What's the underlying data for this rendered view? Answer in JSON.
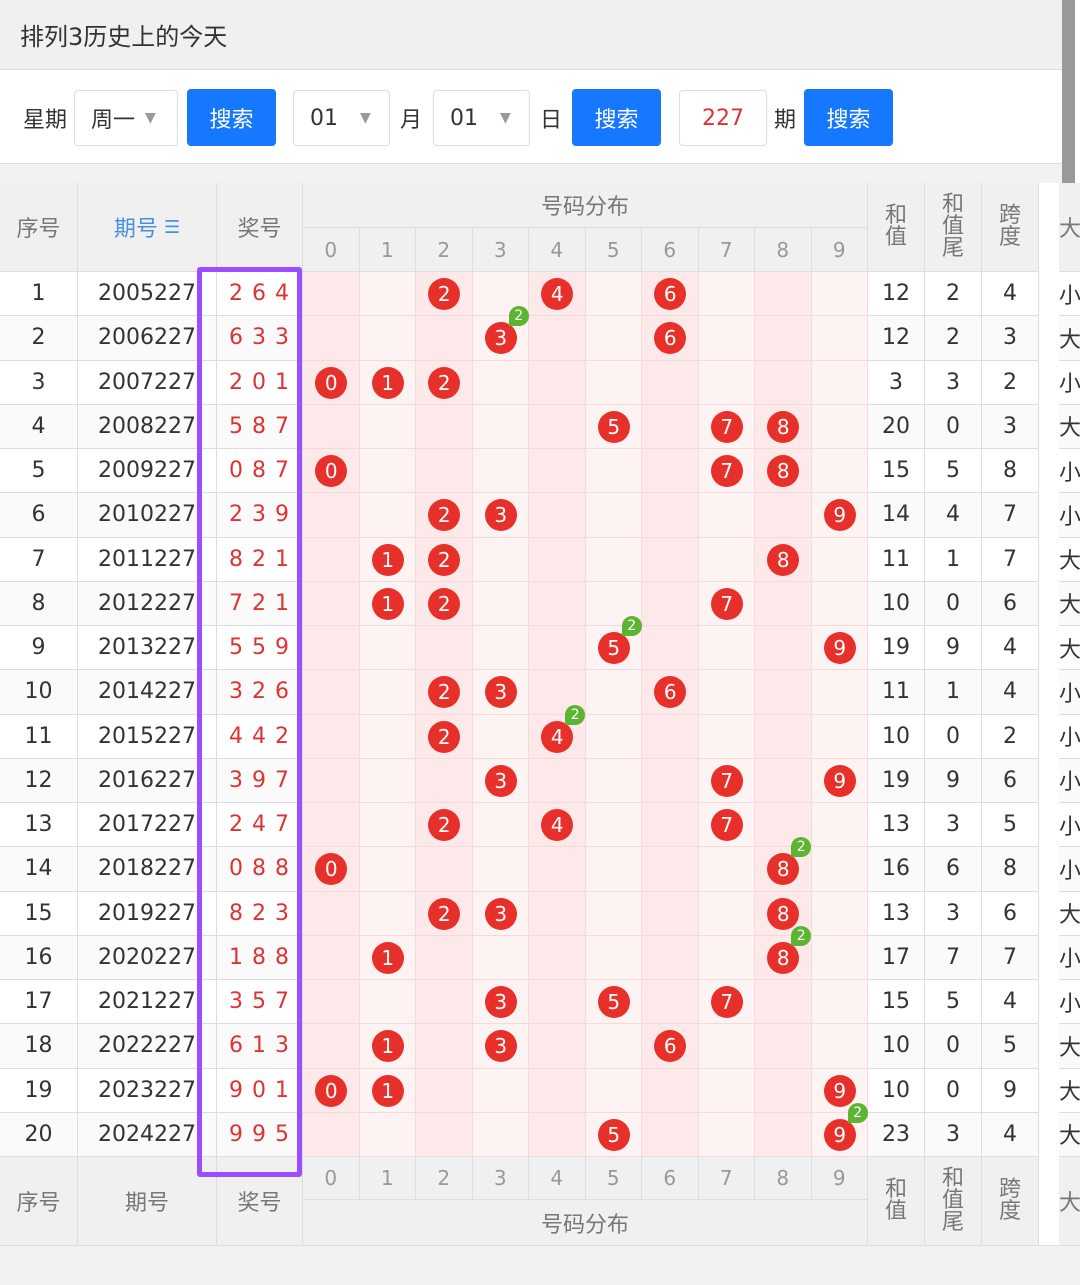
{
  "header": {
    "title": "排列3历史上的今天"
  },
  "controls": {
    "weekday_label": "星期",
    "weekday": "周一",
    "search_1": "搜索",
    "month": "01",
    "month_label": "月",
    "day": "01",
    "day_label": "日",
    "search_2": "搜索",
    "issue": "227",
    "issue_label": "期",
    "search_3": "搜索"
  },
  "table": {
    "headers": {
      "no": "序号",
      "issue": "期号",
      "prize": "奖号",
      "distribution": "号码分布",
      "sum": "和值",
      "tail": "和值尾",
      "span": "跨度",
      "size": "大"
    },
    "digits": [
      0,
      1,
      2,
      3,
      4,
      5,
      6,
      7,
      8,
      9
    ],
    "rows": [
      {
        "no": "1",
        "issue": "2005227",
        "prize": "2 6 4",
        "balls": [
          2,
          4,
          6
        ],
        "badge": null,
        "sum": "12",
        "tail": "2",
        "span": "4",
        "size": "小"
      },
      {
        "no": "2",
        "issue": "2006227",
        "prize": "6 3 3",
        "balls": [
          3,
          6
        ],
        "badge": {
          "digit": 3,
          "count": "2"
        },
        "sum": "12",
        "tail": "2",
        "span": "3",
        "size": "大"
      },
      {
        "no": "3",
        "issue": "2007227",
        "prize": "2 0 1",
        "balls": [
          0,
          1,
          2
        ],
        "badge": null,
        "sum": "3",
        "tail": "3",
        "span": "2",
        "size": "小"
      },
      {
        "no": "4",
        "issue": "2008227",
        "prize": "5 8 7",
        "balls": [
          5,
          7,
          8
        ],
        "badge": null,
        "sum": "20",
        "tail": "0",
        "span": "3",
        "size": "大"
      },
      {
        "no": "5",
        "issue": "2009227",
        "prize": "0 8 7",
        "balls": [
          0,
          7,
          8
        ],
        "badge": null,
        "sum": "15",
        "tail": "5",
        "span": "8",
        "size": "小"
      },
      {
        "no": "6",
        "issue": "2010227",
        "prize": "2 3 9",
        "balls": [
          2,
          3,
          9
        ],
        "badge": null,
        "sum": "14",
        "tail": "4",
        "span": "7",
        "size": "小"
      },
      {
        "no": "7",
        "issue": "2011227",
        "prize": "8 2 1",
        "balls": [
          1,
          2,
          8
        ],
        "badge": null,
        "sum": "11",
        "tail": "1",
        "span": "7",
        "size": "大"
      },
      {
        "no": "8",
        "issue": "2012227",
        "prize": "7 2 1",
        "balls": [
          1,
          2,
          7
        ],
        "badge": null,
        "sum": "10",
        "tail": "0",
        "span": "6",
        "size": "大"
      },
      {
        "no": "9",
        "issue": "2013227",
        "prize": "5 5 9",
        "balls": [
          5,
          9
        ],
        "badge": {
          "digit": 5,
          "count": "2"
        },
        "sum": "19",
        "tail": "9",
        "span": "4",
        "size": "大"
      },
      {
        "no": "10",
        "issue": "2014227",
        "prize": "3 2 6",
        "balls": [
          2,
          3,
          6
        ],
        "badge": null,
        "sum": "11",
        "tail": "1",
        "span": "4",
        "size": "小"
      },
      {
        "no": "11",
        "issue": "2015227",
        "prize": "4 4 2",
        "balls": [
          2,
          4
        ],
        "badge": {
          "digit": 4,
          "count": "2"
        },
        "sum": "10",
        "tail": "0",
        "span": "2",
        "size": "小"
      },
      {
        "no": "12",
        "issue": "2016227",
        "prize": "3 9 7",
        "balls": [
          3,
          7,
          9
        ],
        "badge": null,
        "sum": "19",
        "tail": "9",
        "span": "6",
        "size": "小"
      },
      {
        "no": "13",
        "issue": "2017227",
        "prize": "2 4 7",
        "balls": [
          2,
          4,
          7
        ],
        "badge": null,
        "sum": "13",
        "tail": "3",
        "span": "5",
        "size": "小"
      },
      {
        "no": "14",
        "issue": "2018227",
        "prize": "0 8 8",
        "balls": [
          0,
          8
        ],
        "badge": {
          "digit": 8,
          "count": "2"
        },
        "sum": "16",
        "tail": "6",
        "span": "8",
        "size": "小"
      },
      {
        "no": "15",
        "issue": "2019227",
        "prize": "8 2 3",
        "balls": [
          2,
          3,
          8
        ],
        "badge": null,
        "sum": "13",
        "tail": "3",
        "span": "6",
        "size": "大"
      },
      {
        "no": "16",
        "issue": "2020227",
        "prize": "1 8 8",
        "balls": [
          1,
          8
        ],
        "badge": {
          "digit": 8,
          "count": "2"
        },
        "sum": "17",
        "tail": "7",
        "span": "7",
        "size": "小"
      },
      {
        "no": "17",
        "issue": "2021227",
        "prize": "3 5 7",
        "balls": [
          3,
          5,
          7
        ],
        "badge": null,
        "sum": "15",
        "tail": "5",
        "span": "4",
        "size": "小"
      },
      {
        "no": "18",
        "issue": "2022227",
        "prize": "6 1 3",
        "balls": [
          1,
          3,
          6
        ],
        "badge": null,
        "sum": "10",
        "tail": "0",
        "span": "5",
        "size": "大"
      },
      {
        "no": "19",
        "issue": "2023227",
        "prize": "9 0 1",
        "balls": [
          0,
          1,
          9
        ],
        "badge": null,
        "sum": "10",
        "tail": "0",
        "span": "9",
        "size": "大"
      },
      {
        "no": "20",
        "issue": "2024227",
        "prize": "9 9 5",
        "balls": [
          5,
          9
        ],
        "badge": {
          "digit": 9,
          "count": "2"
        },
        "sum": "23",
        "tail": "3",
        "span": "4",
        "size": "大"
      }
    ]
  }
}
